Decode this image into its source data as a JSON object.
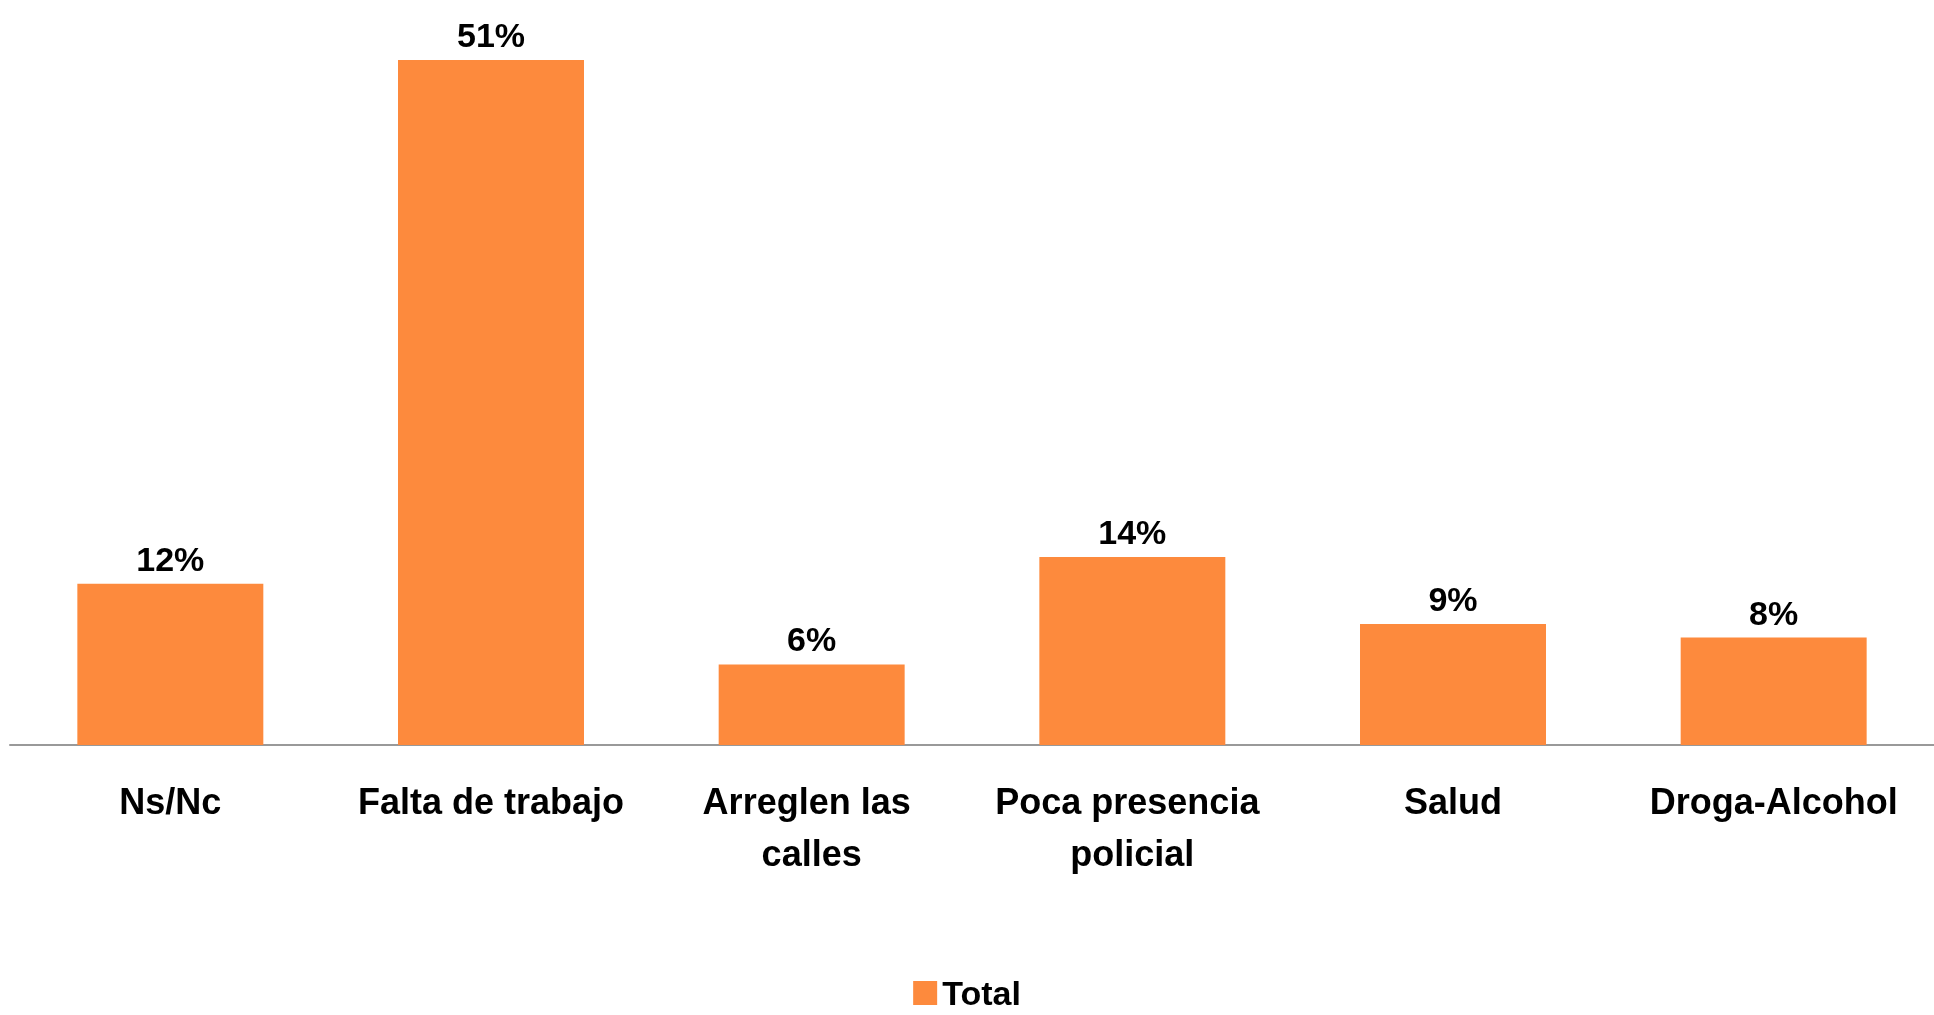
{
  "chart_data": {
    "type": "bar",
    "categories": [
      "Ns/Nc",
      "Falta de trabajo",
      "Arreglen las calles",
      "Poca presencia policial",
      "Salud",
      "Droga-Alcohol"
    ],
    "series": [
      {
        "name": "Total",
        "color": "#fd8a3d",
        "values": [
          12,
          51,
          6,
          14,
          9,
          8
        ],
        "value_labels": [
          "12%",
          "51%",
          "6%",
          "14%",
          "9%",
          "8%"
        ]
      }
    ],
    "legend": "bottom",
    "grid": false
  }
}
